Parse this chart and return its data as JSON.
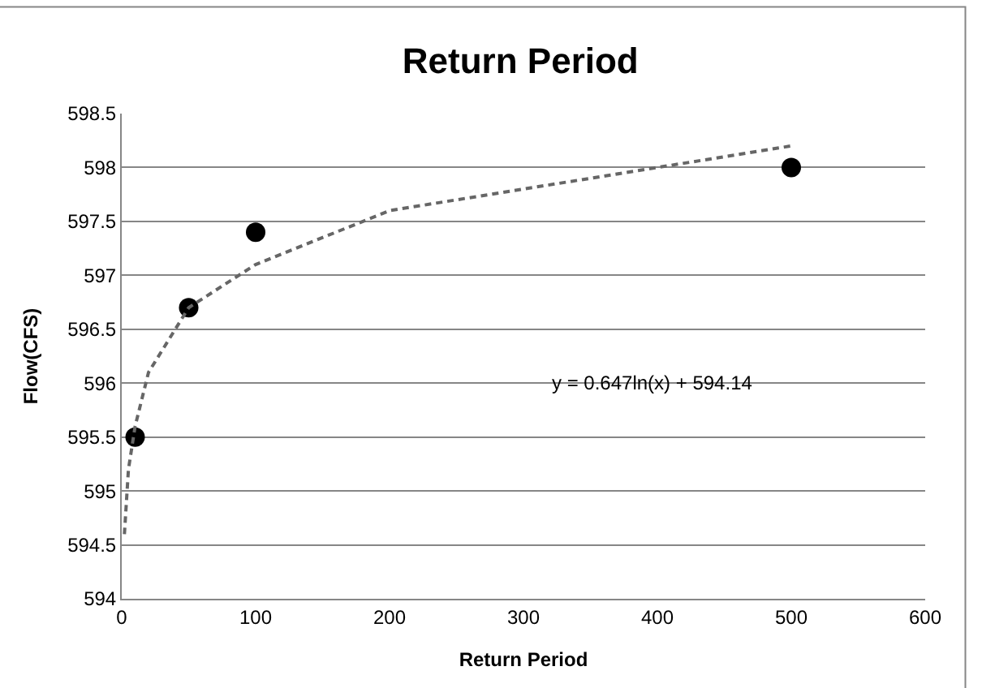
{
  "chart_data": {
    "type": "scatter",
    "title": "Return Period",
    "xlabel": "Return Period",
    "ylabel": "Flow(CFS)",
    "x": [
      10,
      50,
      100,
      500
    ],
    "series": [
      {
        "color": "#000000",
        "marker": "circle",
        "values": [
          595.5,
          596.7,
          597.4,
          598.0
        ]
      },
      {
        "type": "line",
        "color": "#666666",
        "line_style": "dashed",
        "marker": "none",
        "x": [
          2,
          5,
          10,
          20,
          50,
          100,
          200,
          300,
          400,
          500
        ],
        "values": [
          594.6,
          595.2,
          595.6,
          596.1,
          596.7,
          597.1,
          597.6,
          597.8,
          598.0,
          598.2
        ]
      }
    ],
    "xlim": [
      0,
      600
    ],
    "xticks": [
      0,
      100,
      200,
      300,
      400,
      500,
      600
    ],
    "ylim": [
      594,
      598.5
    ],
    "yticks": [
      594,
      594.5,
      595,
      595.5,
      596,
      596.5,
      597,
      597.5,
      598,
      598.5
    ],
    "grid": "y",
    "legend": false,
    "annotations": [
      "y = 0.647ln(x) + 594.14"
    ]
  }
}
